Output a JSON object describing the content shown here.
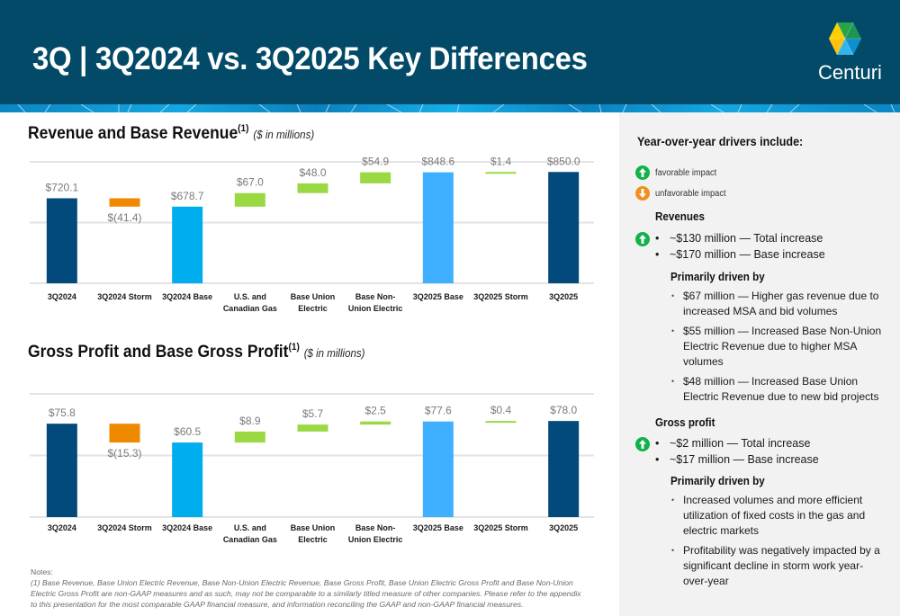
{
  "header": {
    "title": "3Q | 3Q2024 vs. 3Q2025 Key Differences",
    "logo_text": "Centuri",
    "logo_icon": "centuri-hexagon-logo"
  },
  "colors": {
    "header_bg": "#024a68",
    "total_bar": "#024a7c",
    "base_bar": "#00adef",
    "base_bar_2025": "#3fb0ff",
    "increase": "#9ad944",
    "decrease": "#ef8a00",
    "favorable_icon": "#12b24b",
    "unfavorable_icon": "#f0901e"
  },
  "chart_data": [
    {
      "type": "waterfall",
      "title": "Revenue and Base Revenue",
      "title_superscript": "(1)",
      "units": "($ in millions)",
      "categories": [
        "3Q2024",
        "3Q2024 Storm",
        "3Q2024 Base",
        "U.S. and\nCanadian Gas",
        "Base Union\nElectric",
        "Base Non-\nUnion Electric",
        "3Q2025 Base",
        "3Q2025 Storm",
        "3Q2025"
      ],
      "values": [
        720.1,
        -41.4,
        678.7,
        67.0,
        48.0,
        54.9,
        848.6,
        1.4,
        850.0
      ],
      "kinds": [
        "total",
        "decrease",
        "base",
        "increase",
        "increase",
        "increase",
        "base",
        "increase",
        "total"
      ],
      "labels": [
        "$720.1",
        "$(41.4)",
        "$678.7",
        "$67.0",
        "$48.0",
        "$54.9",
        "$848.6",
        "$1.4",
        "$850.0"
      ],
      "ylim": [
        300,
        900
      ],
      "gridlines": [
        300,
        600,
        900
      ],
      "grid": true
    },
    {
      "type": "waterfall",
      "title": "Gross Profit and Base Gross Profit",
      "title_superscript": "(1)",
      "units": "($ in millions)",
      "categories": [
        "3Q2024",
        "3Q2024 Storm",
        "3Q2024 Base",
        "U.S. and\nCanadian Gas",
        "Base Union\nElectric",
        "Base Non-\nUnion Electric",
        "3Q2025 Base",
        "3Q2025 Storm",
        "3Q2025"
      ],
      "values": [
        75.8,
        -15.3,
        60.5,
        8.9,
        5.7,
        2.5,
        77.6,
        0.4,
        78.0
      ],
      "kinds": [
        "total",
        "decrease",
        "base",
        "increase",
        "increase",
        "increase",
        "base",
        "increase",
        "total"
      ],
      "labels": [
        "$75.8",
        "$(15.3)",
        "$60.5",
        "$8.9",
        "$5.7",
        "$2.5",
        "$77.6",
        "$0.4",
        "$78.0"
      ],
      "ylim": [
        0,
        100
      ],
      "gridlines": [
        0,
        50,
        100
      ],
      "grid": true
    }
  ],
  "right_panel": {
    "heading": "Year-over-year drivers include:",
    "legend": [
      {
        "icon": "arrow-up-circle-icon",
        "label": "favorable impact"
      },
      {
        "icon": "arrow-down-circle-icon",
        "label": "unfavorable impact"
      }
    ],
    "revenues": {
      "heading": "Revenues",
      "impact": "favorable",
      "bullets": [
        "~$130 million — Total increase",
        "~$170 million — Base increase"
      ],
      "driver_heading": "Primarily driven by",
      "drivers": [
        "$67 million — Higher gas revenue due to increased MSA and bid volumes",
        "$55 million — Increased Base Non-Union Electric Revenue due to higher MSA volumes",
        "$48 million — Increased Base Union Electric Revenue due to new bid projects"
      ]
    },
    "gross_profit": {
      "heading": "Gross profit",
      "impact": "favorable",
      "bullets": [
        "~$2 million — Total increase",
        "~$17 million — Base increase"
      ],
      "driver_heading": "Primarily driven by",
      "drivers": [
        "Increased volumes and more efficient utilization of fixed costs in the gas and electric markets",
        "Profitability was negatively impacted by a significant decline in storm work year-over-year"
      ]
    }
  },
  "notes": {
    "title": "Notes:",
    "body": "(1) Base Revenue, Base Union Electric Revenue, Base Non-Union Electric Revenue, Base Gross Profit, Base Union Electric Gross Profit and Base Non-Union Electric Gross Profit are non-GAAP measures and as such, may not be comparable to a similarly titled measure of other companies. Please refer to the appendix to this presentation for the most comparable GAAP financial measure, and information reconciling the GAAP and non-GAAP financial measures."
  }
}
